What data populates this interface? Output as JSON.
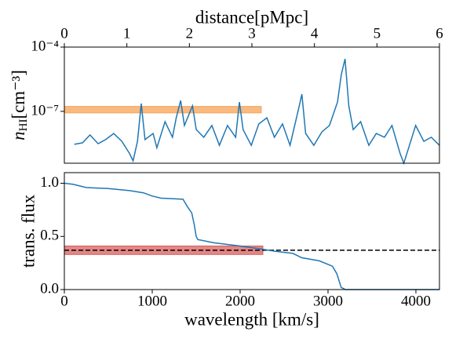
{
  "chart_data": [
    {
      "type": "line",
      "x_axis": "top",
      "log_y": true,
      "x_label": "distance[pMpc]",
      "y_label": {
        "symbol": "n",
        "subscript": "HI",
        "unit": "[cm⁻³]"
      },
      "xlim": [
        0,
        6
      ],
      "xticks": [
        0,
        1,
        2,
        3,
        4,
        5,
        6
      ],
      "ylim": [
        3.8e-10,
        0.0001
      ],
      "yticks": [
        {
          "value": 0.0001,
          "label": "10⁻⁴"
        },
        {
          "value": 1e-07,
          "label": "10⁻⁷"
        }
      ],
      "color": "#1f77b4",
      "bands": [
        {
          "x": [
            0,
            3.15
          ],
          "y": [
            8.5e-08,
            1.7e-07
          ],
          "color": "#f9b97f",
          "edge": "#f5a55c"
        }
      ],
      "x": [
        0.16,
        0.29,
        0.41,
        0.54,
        0.66,
        0.79,
        0.92,
        1.04,
        1.1,
        1.17,
        1.23,
        1.29,
        1.42,
        1.48,
        1.61,
        1.73,
        1.79,
        1.86,
        1.92,
        2.05,
        2.11,
        2.23,
        2.36,
        2.48,
        2.61,
        2.74,
        2.8,
        2.86,
        2.99,
        3.11,
        3.24,
        3.36,
        3.49,
        3.61,
        3.74,
        3.8,
        3.86,
        3.99,
        4.12,
        4.24,
        4.37,
        4.43,
        4.49,
        4.55,
        4.62,
        4.74,
        4.87,
        4.99,
        5.12,
        5.24,
        5.37,
        5.43,
        5.5,
        5.62,
        5.75,
        5.87,
        6.0
      ],
      "values": [
        2.9e-09,
        3.4e-09,
        7.9e-09,
        3.1e-09,
        4.8e-09,
        9.3e-09,
        4e-09,
        1.1e-09,
        4.9e-10,
        4e-09,
        2.3e-07,
        4.8e-09,
        9.3e-09,
        2e-09,
        3.3e-08,
        6.2e-09,
        5e-08,
        3.2e-07,
        2.2e-08,
        1.8e-07,
        1.4e-08,
        6.2e-09,
        2.2e-08,
        2.6e-09,
        2.2e-08,
        6.2e-09,
        2.7e-07,
        1.4e-08,
        2.6e-09,
        2.6e-08,
        5e-08,
        6.2e-09,
        2.6e-08,
        2.6e-09,
        1.1e-07,
        6.3e-07,
        9.3e-09,
        2.6e-09,
        1.1e-08,
        2.2e-08,
        2.7e-07,
        5.2e-06,
        2.8e-05,
        1.8e-07,
        1.4e-08,
        3.3e-08,
        2.6e-09,
        9.3e-09,
        6.2e-09,
        2.2e-08,
        1.1e-09,
        3.8e-10,
        1.7e-09,
        2.2e-08,
        4e-09,
        6.2e-09,
        2.6e-09
      ]
    },
    {
      "type": "line",
      "x_axis": "bottom",
      "log_y": false,
      "x_label": "wavelength [km/s]",
      "y_label": "trans. flux",
      "xlim": [
        0,
        4268
      ],
      "xticks": [
        0,
        1000,
        2000,
        3000,
        4000
      ],
      "ylim": [
        0,
        1.1
      ],
      "yticks": [
        {
          "value": 0,
          "label": "0.0"
        },
        {
          "value": 0.5,
          "label": "0.5"
        },
        {
          "value": 1,
          "label": "1.0"
        }
      ],
      "color": "#1f77b4",
      "bands": [
        {
          "x": [
            0,
            2259
          ],
          "y": [
            0.33,
            0.41
          ],
          "color": "#e38686",
          "edge": "#d66060"
        }
      ],
      "hline": {
        "y": 0.37,
        "color": "#000000",
        "dashed": true
      },
      "x": [
        0,
        100,
        250,
        500,
        750,
        900,
        1000,
        1100,
        1350,
        1400,
        1450,
        1480,
        1500,
        1520,
        1700,
        2000,
        2250,
        2400,
        2600,
        2700,
        2900,
        3050,
        3100,
        3150,
        3200,
        4268
      ],
      "values": [
        1.0,
        0.99,
        0.96,
        0.95,
        0.93,
        0.91,
        0.88,
        0.86,
        0.85,
        0.78,
        0.72,
        0.6,
        0.5,
        0.47,
        0.44,
        0.41,
        0.38,
        0.36,
        0.34,
        0.3,
        0.27,
        0.22,
        0.15,
        0.02,
        0.0,
        0.0
      ]
    }
  ]
}
